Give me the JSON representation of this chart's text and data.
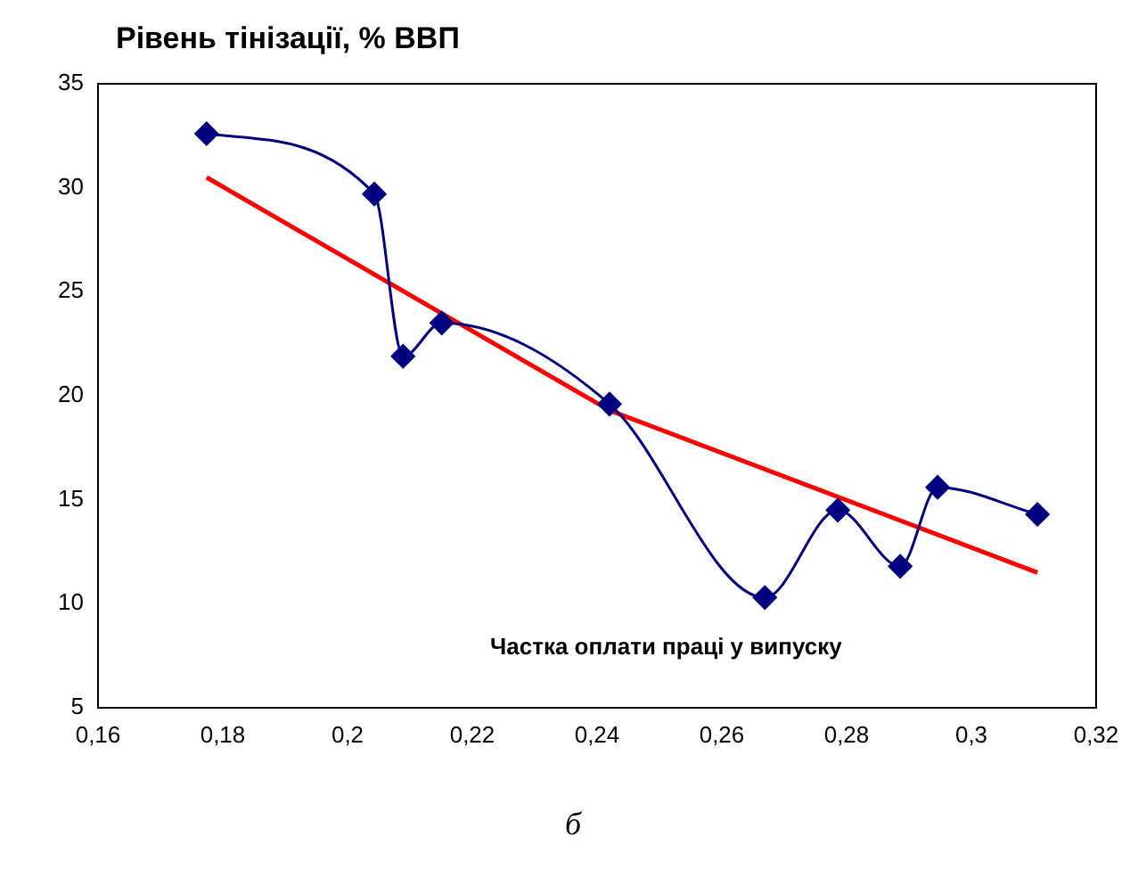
{
  "chart_data": {
    "type": "line",
    "ylabel": "Рівень тінізації, % ВВП",
    "xlabel": "Частка оплати праці у випуску",
    "annotations": [
      "б"
    ],
    "xlim": [
      0.16,
      0.32
    ],
    "xticks": [
      {
        "value": 0.16,
        "label": "0,16"
      },
      {
        "value": 0.18,
        "label": "0,18"
      },
      {
        "value": 0.2,
        "label": "0,2"
      },
      {
        "value": 0.22,
        "label": "0,22"
      },
      {
        "value": 0.24,
        "label": "0,24"
      },
      {
        "value": 0.26,
        "label": "0,26"
      },
      {
        "value": 0.28,
        "label": "0,28"
      },
      {
        "value": 0.3,
        "label": "0,3"
      },
      {
        "value": 0.32,
        "label": "0,32"
      }
    ],
    "ylim": [
      5,
      35
    ],
    "yticks": [
      5,
      10,
      15,
      20,
      25,
      30,
      35
    ],
    "grid": false,
    "legend": false,
    "series": [
      {
        "color": "#000080",
        "marker": "diamond",
        "x": [
          0.1774,
          0.2043,
          0.2089,
          0.2151,
          0.242,
          0.2669,
          0.2786,
          0.2886,
          0.2946,
          0.3106
        ],
        "values": [
          32.6,
          29.7,
          21.9,
          23.5,
          19.6,
          10.3,
          14.5,
          11.8,
          15.6,
          14.3
        ]
      },
      {
        "color": "#ff0000",
        "marker": "none",
        "x": [
          0.1774,
          0.242,
          0.3106
        ],
        "values": [
          30.5,
          19.3,
          11.5
        ]
      }
    ]
  }
}
